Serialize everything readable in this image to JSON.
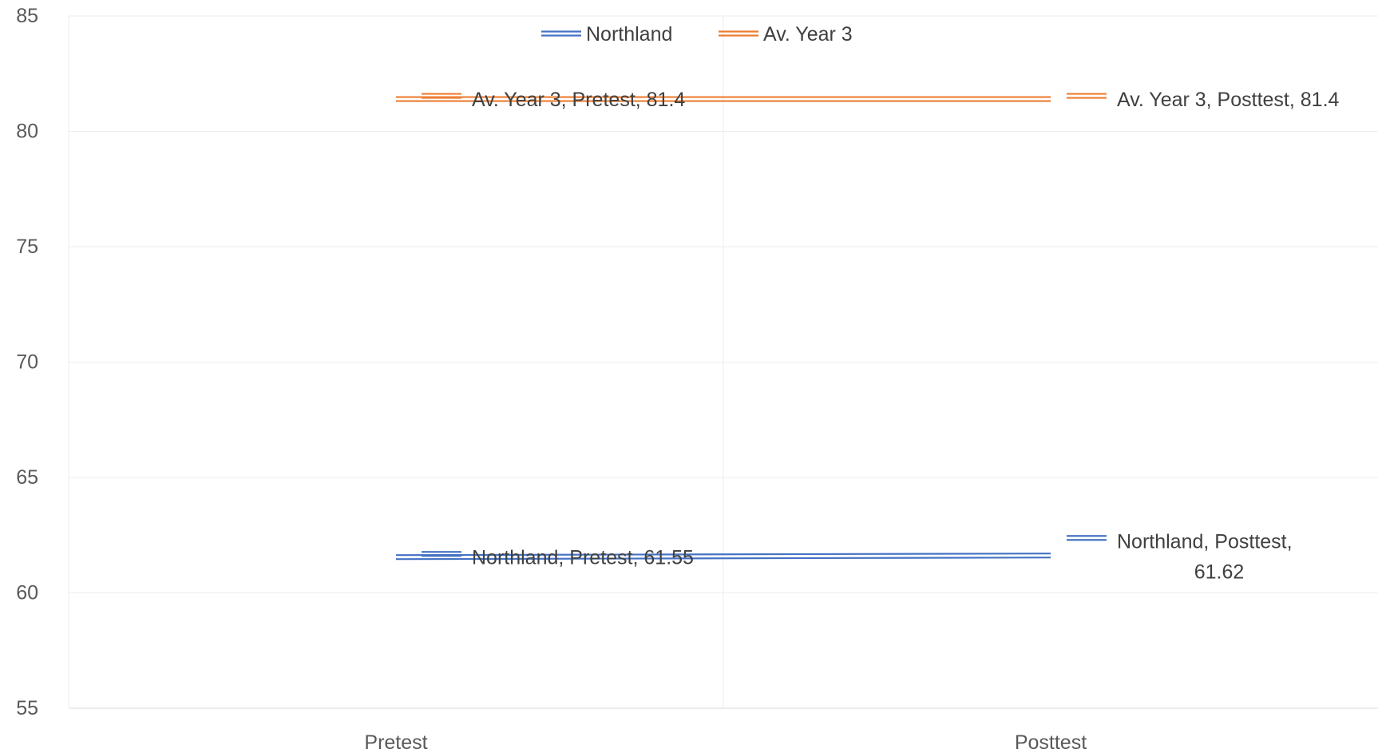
{
  "chart_data": {
    "type": "line",
    "categories": [
      "Pretest",
      "Posttest"
    ],
    "series": [
      {
        "name": "Northland",
        "values": [
          61.55,
          61.62
        ],
        "color": "#4472C4",
        "labels": [
          [
            "Northland, Pretest, 61.55"
          ],
          [
            "Northland, Posttest,",
            "61.62"
          ]
        ]
      },
      {
        "name": "Av. Year 3",
        "values": [
          81.4,
          81.4
        ],
        "color": "#ED7D31",
        "labels": [
          [
            "Av. Year 3, Pretest, 81.4"
          ],
          [
            "Av. Year 3, Posttest, 81.4"
          ]
        ]
      }
    ],
    "ylim": [
      55,
      85
    ],
    "yticks": [
      55,
      60,
      65,
      70,
      75,
      80,
      85
    ],
    "grid": true,
    "legend_position": "top",
    "line_style": "double"
  }
}
